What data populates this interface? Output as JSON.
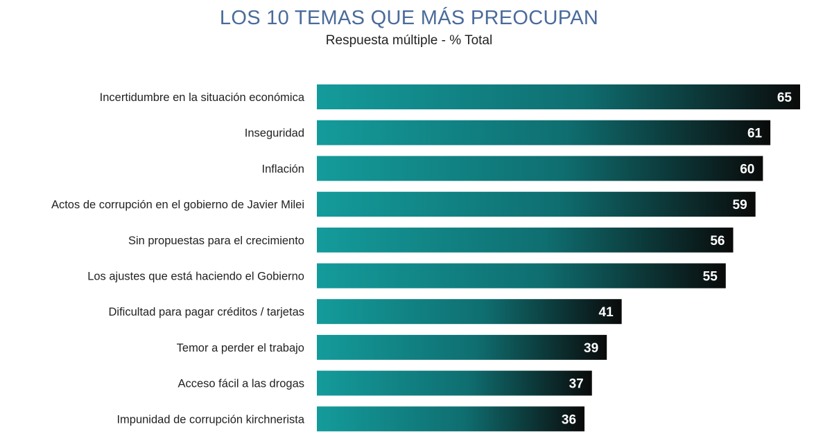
{
  "chart_data": {
    "type": "bar",
    "orientation": "horizontal",
    "title": "LOS 10 TEMAS QUE MÁS PREOCUPAN",
    "subtitle": "Respuesta múltiple - % Total",
    "categories": [
      "Incertidumbre en la situación económica",
      "Inseguridad",
      "Inflación",
      "Actos de corrupción en el gobierno de Javier Milei",
      "Sin propuestas para el crecimiento",
      "Los ajustes que está haciendo el Gobierno",
      "Dificultad para pagar créditos / tarjetas",
      "Temor a perder el trabajo",
      "Acceso fácil a las drogas",
      "Impunidad de corrupción kirchnerista"
    ],
    "values": [
      65,
      61,
      60,
      59,
      56,
      55,
      41,
      39,
      37,
      36
    ],
    "value_labels": [
      "65",
      "61",
      "60",
      "59",
      "56",
      "55",
      "41",
      "39",
      "37",
      "36"
    ],
    "xlim": [
      0,
      65
    ],
    "grid": false,
    "legend": "none",
    "colors": {
      "bar_start": "#149b9b",
      "bar_end": "#0a0a0a",
      "title": "#4a6b9a"
    }
  }
}
